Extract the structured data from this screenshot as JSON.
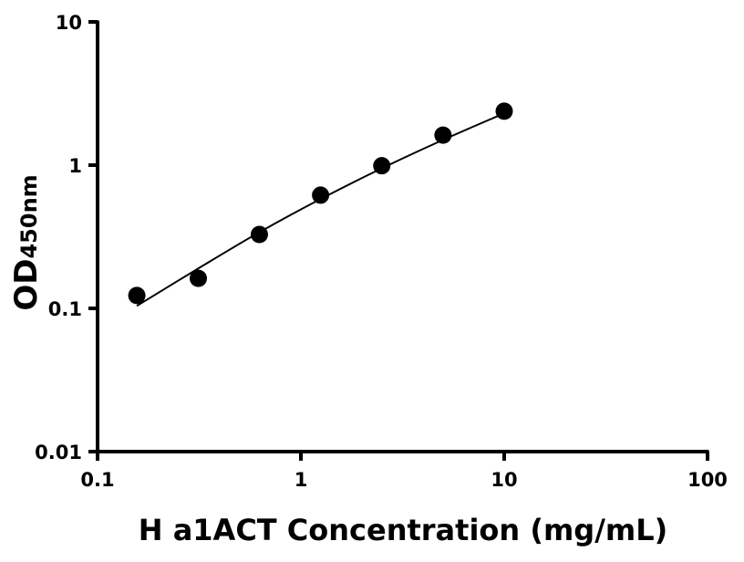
{
  "chart_data": {
    "type": "scatter",
    "title": "",
    "xlabel": "H a1ACT Concentration (mg/mL)",
    "ylabel": "OD",
    "ylabel_subscript": "450nm",
    "xscale": "log",
    "yscale": "log",
    "xlim": [
      0.1,
      100
    ],
    "ylim": [
      0.01,
      10
    ],
    "xticks": [
      "0.1",
      "1",
      "10",
      "100"
    ],
    "yticks": [
      "0.01",
      "0.1",
      "1",
      "10"
    ],
    "grid": false,
    "series": [
      {
        "x": [
          0.156,
          0.313,
          0.625,
          1.25,
          2.5,
          5,
          10
        ],
        "y": [
          0.123,
          0.162,
          0.328,
          0.617,
          0.99,
          1.62,
          2.38
        ],
        "color": "#000000",
        "marker": "circle"
      }
    ],
    "fit_curve": {
      "x": [
        0.156,
        0.313,
        0.625,
        1.25,
        2.5,
        5,
        10
      ],
      "y": [
        0.104,
        0.19,
        0.34,
        0.58,
        0.95,
        1.5,
        2.3
      ],
      "color": "#000000"
    }
  }
}
